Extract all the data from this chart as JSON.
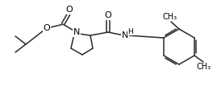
{
  "bg_color": "#ffffff",
  "line_color": "#2a2a2a",
  "line_width": 1.1,
  "font_size": 7.5,
  "figsize": [
    2.74,
    1.23
  ],
  "dpi": 100,
  "xlim": [
    0,
    274
  ],
  "ylim": [
    0,
    123
  ]
}
